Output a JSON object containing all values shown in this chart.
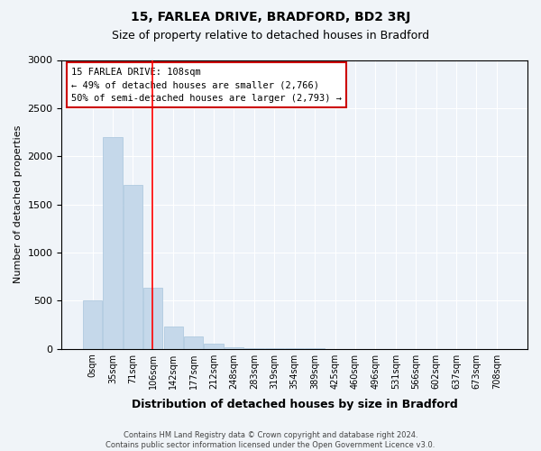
{
  "title1": "15, FARLEA DRIVE, BRADFORD, BD2 3RJ",
  "title2": "Size of property relative to detached houses in Bradford",
  "xlabel": "Distribution of detached houses by size in Bradford",
  "ylabel": "Number of detached properties",
  "footnote": "Contains HM Land Registry data © Crown copyright and database right 2024.\nContains public sector information licensed under the Open Government Licence v3.0.",
  "bar_labels": [
    "0sqm",
    "35sqm",
    "71sqm",
    "106sqm",
    "142sqm",
    "177sqm",
    "212sqm",
    "248sqm",
    "283sqm",
    "319sqm",
    "354sqm",
    "389sqm",
    "425sqm",
    "460sqm",
    "496sqm",
    "531sqm",
    "566sqm",
    "602sqm",
    "637sqm",
    "673sqm",
    "708sqm"
  ],
  "bar_values": [
    500,
    2200,
    1700,
    630,
    230,
    130,
    50,
    20,
    10,
    5,
    3,
    2,
    1,
    1,
    1,
    0,
    0,
    0,
    0,
    0,
    0
  ],
  "bar_color": "#c5d8ea",
  "bar_edge_color": "#a8c4dc",
  "background_color": "#eef3f9",
  "fig_background_color": "#f0f4f8",
  "grid_color": "#ffffff",
  "red_line_x": 2.97,
  "annotation_text": "15 FARLEA DRIVE: 108sqm\n← 49% of detached houses are smaller (2,766)\n50% of semi-detached houses are larger (2,793) →",
  "annotation_box_color": "#ffffff",
  "annotation_box_edge_color": "#cc0000",
  "ylim": [
    0,
    3000
  ],
  "yticks": [
    0,
    500,
    1000,
    1500,
    2000,
    2500,
    3000
  ]
}
